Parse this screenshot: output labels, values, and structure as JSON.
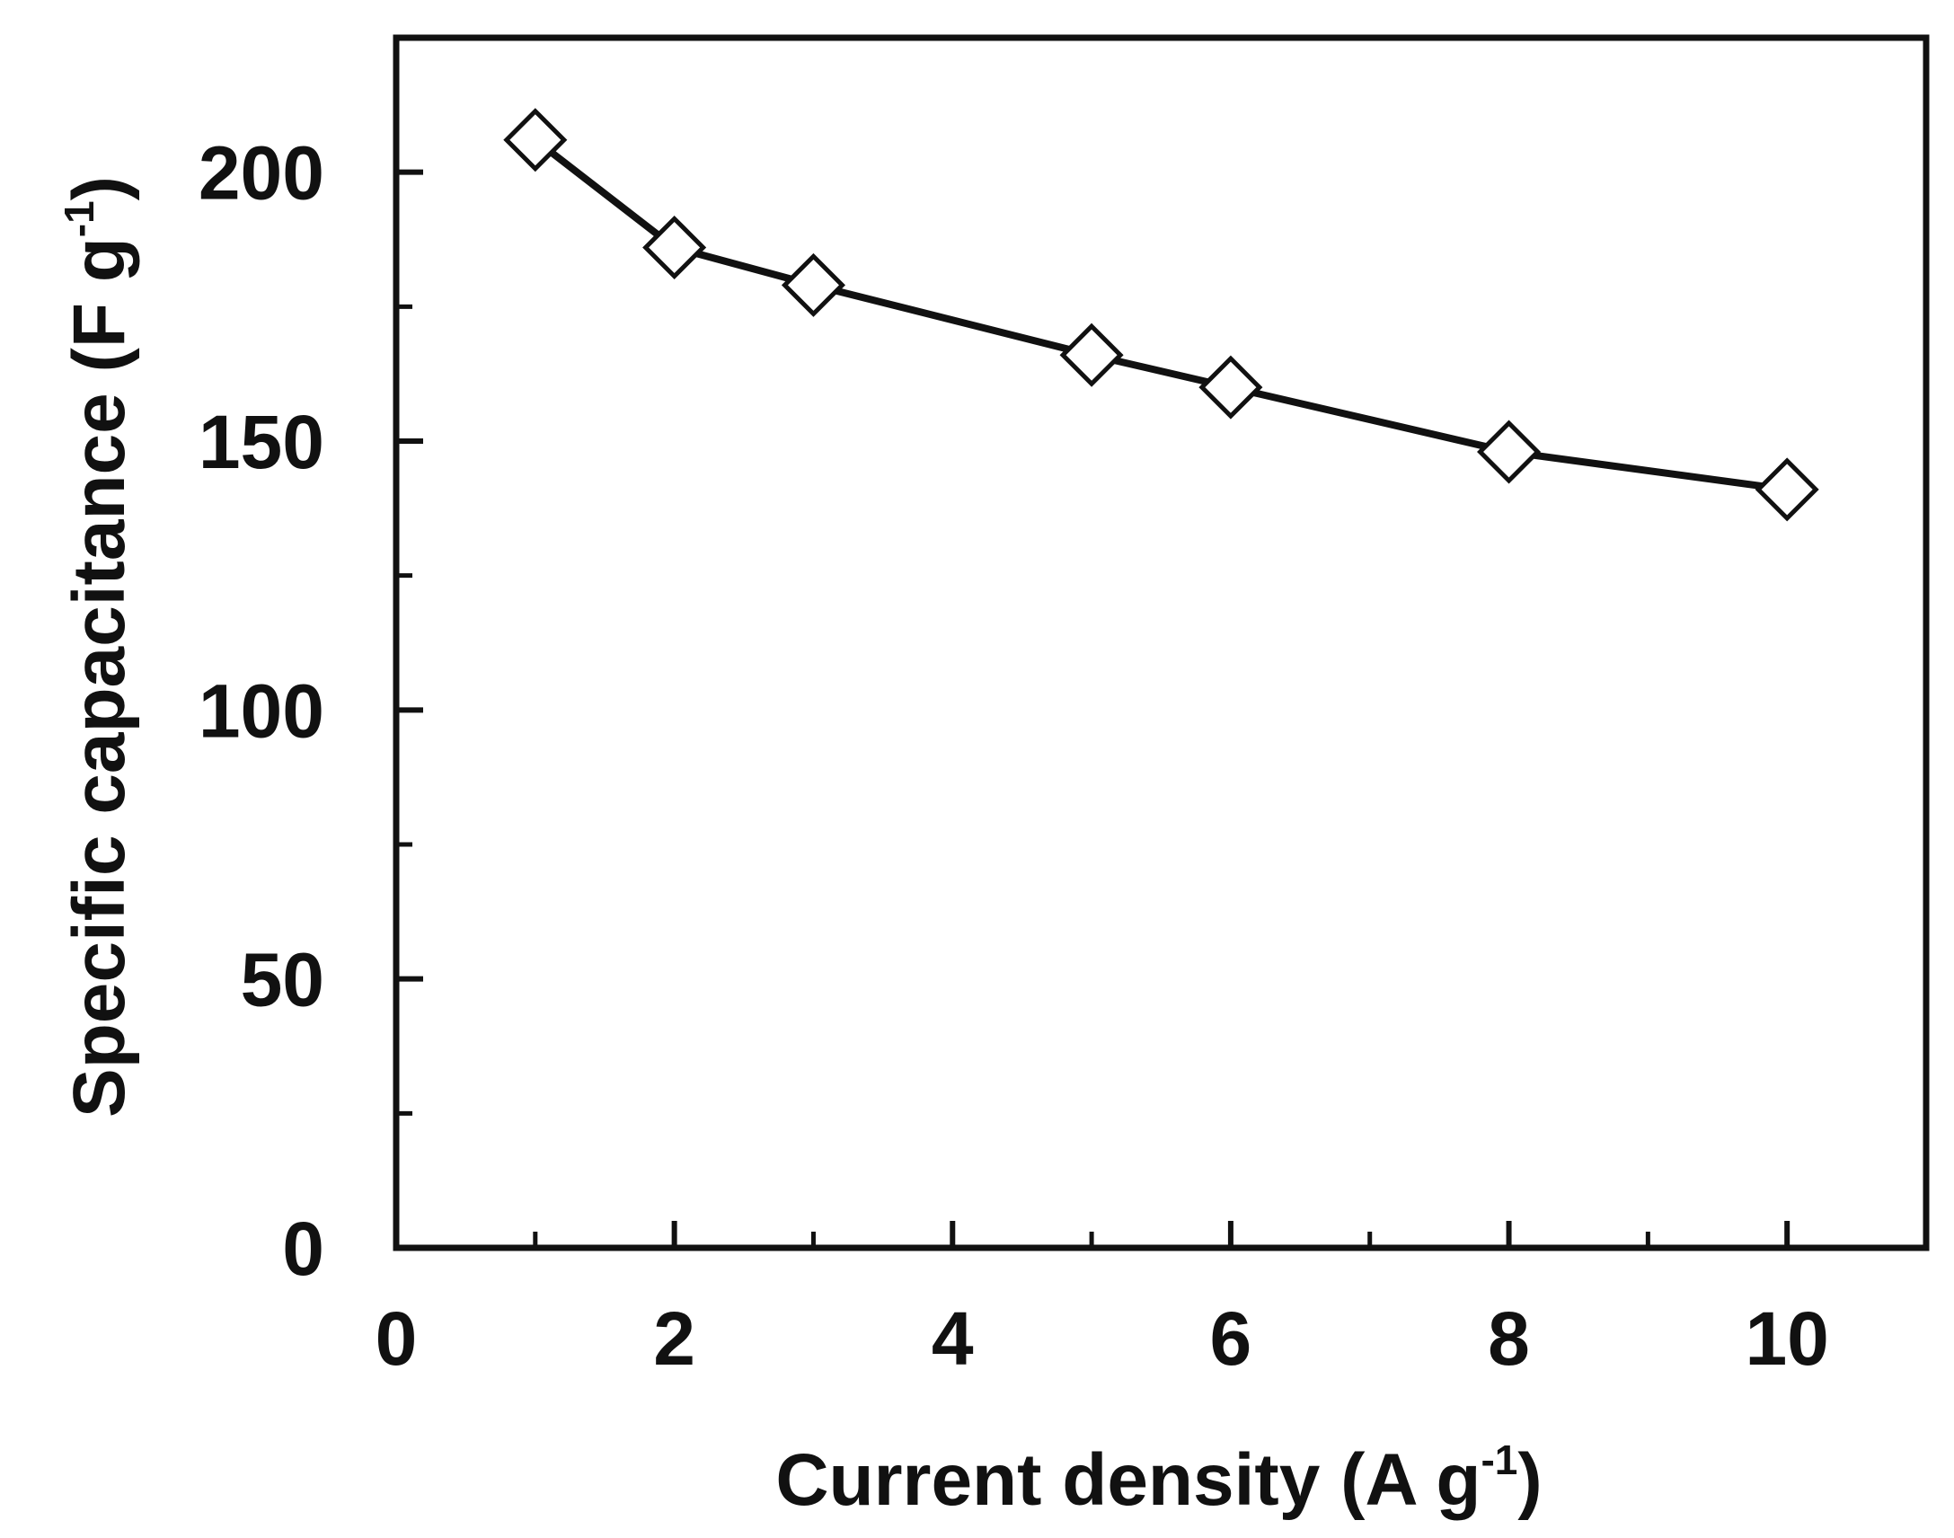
{
  "chart_data": {
    "type": "line",
    "title": "",
    "xlabel": "Current density (A g",
    "xlabel_sup": "-1",
    "xlabel_close": ")",
    "ylabel": "Specific capacitance (F g",
    "ylabel_sup": "-1",
    "ylabel_close": ")",
    "xlim": [
      0,
      11
    ],
    "ylim": [
      0,
      225
    ],
    "xticks": [
      0,
      2,
      4,
      6,
      8,
      10
    ],
    "xtick_labels": [
      "0",
      "2",
      "4",
      "6",
      "8",
      "10"
    ],
    "xminor": [
      1,
      3,
      5,
      7,
      9
    ],
    "yticks": [
      0,
      50,
      100,
      150,
      200
    ],
    "ytick_labels": [
      "0",
      "50",
      "100",
      "150",
      "200"
    ],
    "yminor": [
      25,
      75,
      125,
      175
    ],
    "grid": false,
    "marker": "open-diamond",
    "line_color": "#111111",
    "series": [
      {
        "x": [
          1,
          2,
          3,
          5,
          6,
          8,
          10
        ],
        "y": [
          206,
          186,
          179,
          166,
          160,
          148,
          141
        ]
      }
    ]
  }
}
